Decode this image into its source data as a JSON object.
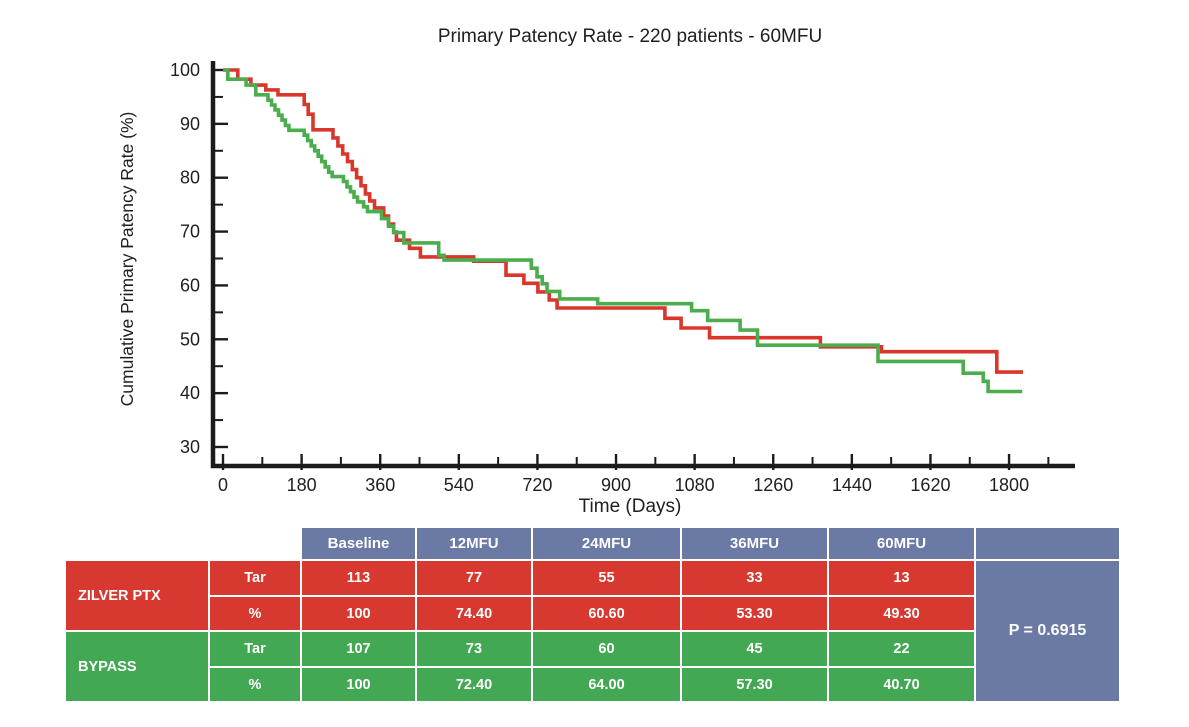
{
  "chart_data": {
    "type": "line",
    "subtype": "kaplan-meier-step",
    "title": "Primary Patency Rate - 220 patients - 60MFU",
    "xlabel": "Time (Days)",
    "ylabel": "Cumulative Primary Patency Rate (%)",
    "xlim": [
      0,
      1950
    ],
    "ylim": [
      30,
      100
    ],
    "x_major_ticks": [
      0,
      180,
      360,
      540,
      720,
      900,
      1080,
      1260,
      1440,
      1620,
      1800
    ],
    "x_minor_tick_step": 90,
    "y_major_ticks": [
      100,
      90,
      80,
      70,
      60,
      50,
      40,
      30
    ],
    "y_minor_tick_step": 5,
    "grid": false,
    "legend_position": "none",
    "axis_color": "#1b1b1b",
    "series": [
      {
        "name": "ZILVER PTX",
        "color": "#d9362c",
        "steps": [
          [
            0,
            100
          ],
          [
            34,
            98.3
          ],
          [
            64,
            97.2
          ],
          [
            98,
            96.3
          ],
          [
            126,
            95.4
          ],
          [
            186,
            93.6
          ],
          [
            195,
            91.8
          ],
          [
            206,
            88.9
          ],
          [
            252,
            87.4
          ],
          [
            263,
            85.9
          ],
          [
            274,
            84.4
          ],
          [
            285,
            83.0
          ],
          [
            296,
            81.5
          ],
          [
            306,
            80.0
          ],
          [
            316,
            78.5
          ],
          [
            326,
            77.0
          ],
          [
            336,
            75.7
          ],
          [
            347,
            74.4
          ],
          [
            368,
            72.9
          ],
          [
            379,
            71.4
          ],
          [
            391,
            69.9
          ],
          [
            397,
            68.4
          ],
          [
            427,
            66.9
          ],
          [
            452,
            65.3
          ],
          [
            574,
            64.5
          ],
          [
            648,
            61.9
          ],
          [
            689,
            60.4
          ],
          [
            721,
            58.8
          ],
          [
            747,
            57.3
          ],
          [
            765,
            55.8
          ],
          [
            1012,
            53.9
          ],
          [
            1049,
            52.1
          ],
          [
            1114,
            50.3
          ],
          [
            1368,
            48.6
          ],
          [
            1508,
            47.7
          ],
          [
            1772,
            43.9
          ],
          [
            1832,
            43.9
          ]
        ]
      },
      {
        "name": "BYPASS",
        "color": "#4bad4e",
        "steps": [
          [
            0,
            100
          ],
          [
            11,
            98.3
          ],
          [
            53,
            97.2
          ],
          [
            75,
            95.4
          ],
          [
            103,
            94.4
          ],
          [
            111,
            93.5
          ],
          [
            119,
            92.6
          ],
          [
            127,
            91.6
          ],
          [
            135,
            90.7
          ],
          [
            143,
            89.7
          ],
          [
            151,
            88.8
          ],
          [
            186,
            87.9
          ],
          [
            194,
            86.9
          ],
          [
            202,
            85.9
          ],
          [
            210,
            85.0
          ],
          [
            218,
            84.0
          ],
          [
            226,
            83.0
          ],
          [
            234,
            82.0
          ],
          [
            242,
            81.0
          ],
          [
            250,
            80.2
          ],
          [
            276,
            79.3
          ],
          [
            284,
            78.3
          ],
          [
            292,
            77.4
          ],
          [
            300,
            76.4
          ],
          [
            308,
            75.5
          ],
          [
            322,
            74.6
          ],
          [
            331,
            73.7
          ],
          [
            363,
            72.4
          ],
          [
            379,
            71.0
          ],
          [
            391,
            69.8
          ],
          [
            414,
            67.9
          ],
          [
            494,
            65.6
          ],
          [
            506,
            64.7
          ],
          [
            706,
            63.2
          ],
          [
            719,
            61.6
          ],
          [
            731,
            60.3
          ],
          [
            742,
            58.9
          ],
          [
            771,
            57.5
          ],
          [
            858,
            56.6
          ],
          [
            1073,
            55.3
          ],
          [
            1110,
            53.5
          ],
          [
            1184,
            51.7
          ],
          [
            1224,
            48.9
          ],
          [
            1500,
            45.9
          ],
          [
            1695,
            43.7
          ],
          [
            1741,
            42.2
          ],
          [
            1752,
            40.3
          ],
          [
            1830,
            40.3
          ]
        ]
      }
    ]
  },
  "table": {
    "headers": [
      "Baseline",
      "12MFU",
      "24MFU",
      "36MFU",
      "60MFU"
    ],
    "header_bg": "#6b79a5",
    "groups": [
      {
        "label": "ZILVER PTX",
        "color": "#d7382f",
        "rows": [
          {
            "label": "Tar",
            "values": [
              "113",
              "77",
              "55",
              "33",
              "13"
            ]
          },
          {
            "label": "%",
            "values": [
              "100",
              "74.40",
              "60.60",
              "53.30",
              "49.30"
            ]
          }
        ]
      },
      {
        "label": "BYPASS",
        "color": "#43a854",
        "rows": [
          {
            "label": "Tar",
            "values": [
              "107",
              "73",
              "60",
              "45",
              "22"
            ]
          },
          {
            "label": "%",
            "values": [
              "100",
              "72.40",
              "64.00",
              "57.30",
              "40.70"
            ]
          }
        ]
      }
    ],
    "p_value": "P = 0.6915"
  }
}
